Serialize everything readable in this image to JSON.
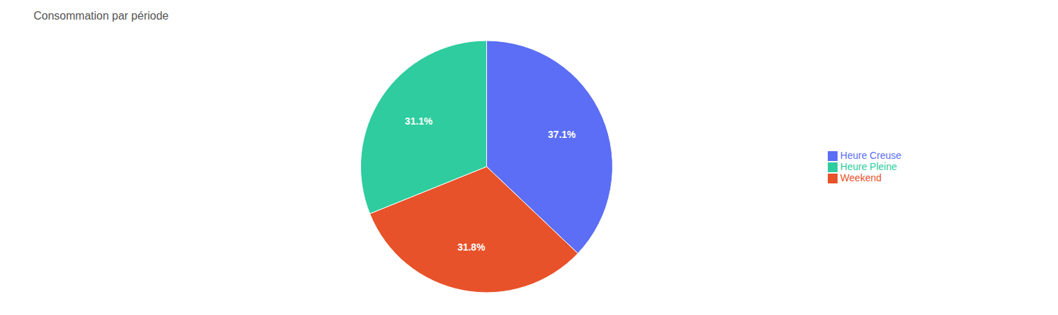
{
  "chart_data": {
    "type": "pie",
    "title": "Consommation par période",
    "categories": [
      "Heure Creuse",
      "Weekend",
      "Heure Pleine"
    ],
    "values": [
      37.1,
      31.8,
      31.1
    ],
    "value_labels": [
      "37.1%",
      "31.8%",
      "31.1%"
    ],
    "colors": [
      "#5b6ef5",
      "#e8522a",
      "#2ecc9e"
    ],
    "data_labels": true,
    "legend": "right"
  }
}
